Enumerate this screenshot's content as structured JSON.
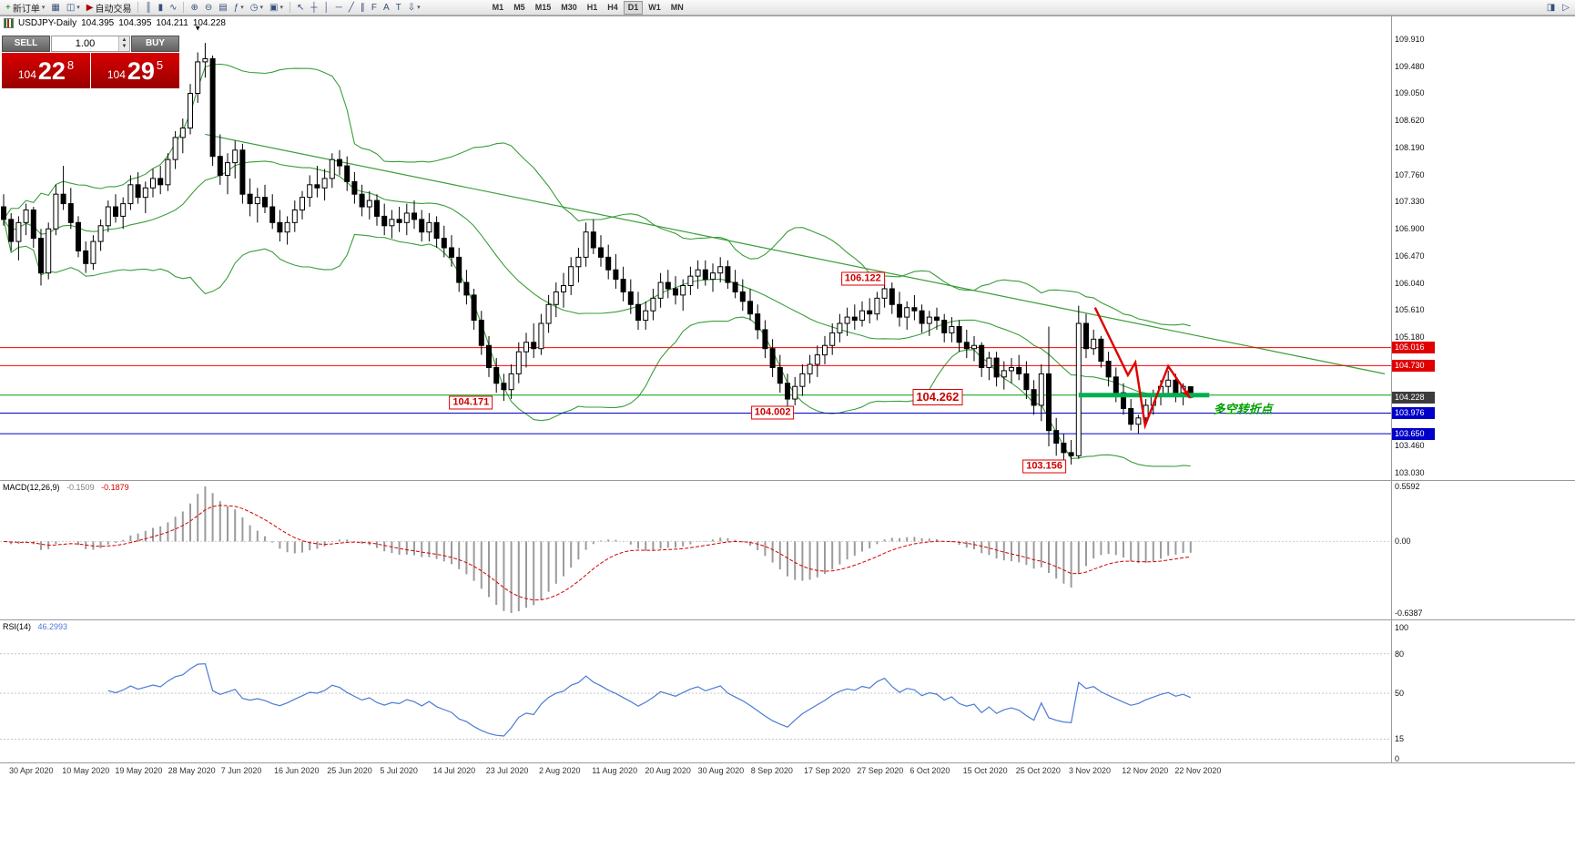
{
  "toolbar": {
    "items": [
      {
        "name": "new-order-button",
        "glyph": "+",
        "glyph_color": "#008000",
        "label": "新订单",
        "dropdown": true
      },
      {
        "name": "charts-icon",
        "glyph": "▦"
      },
      {
        "name": "profiles-icon",
        "glyph": "◫",
        "dropdown": true
      },
      {
        "name": "auto-trading-button",
        "glyph": "▶",
        "glyph_color": "#b00000",
        "label": "自动交易"
      },
      {
        "sep": true
      },
      {
        "name": "bars-chart-icon",
        "glyph": "║"
      },
      {
        "name": "candlestick-chart-icon",
        "glyph": "▮"
      },
      {
        "name": "line-chart-icon",
        "glyph": "∿"
      },
      {
        "sep": true
      },
      {
        "name": "zoom-in-icon",
        "glyph": "⊕"
      },
      {
        "name": "zoom-out-icon",
        "glyph": "⊖"
      },
      {
        "name": "tile-windows-icon",
        "glyph": "▤"
      },
      {
        "name": "indicators-icon",
        "glyph": "ƒ",
        "dropdown": true
      },
      {
        "name": "periods-icon",
        "glyph": "◷",
        "dropdown": true
      },
      {
        "name": "templates-icon",
        "glyph": "▣",
        "dropdown": true
      },
      {
        "sep": true
      },
      {
        "name": "cursor-icon",
        "glyph": "↖"
      },
      {
        "name": "crosshair-icon",
        "glyph": "┼"
      },
      {
        "name": "vertical-line-icon",
        "glyph": "│"
      },
      {
        "name": "horizontal-line-icon",
        "glyph": "─"
      },
      {
        "name": "trendline-icon",
        "glyph": "╱"
      },
      {
        "name": "channel-icon",
        "glyph": "∥"
      },
      {
        "name": "fibonacci-icon",
        "glyph": "F"
      },
      {
        "name": "text-icon",
        "glyph": "A"
      },
      {
        "name": "label-icon",
        "glyph": "T"
      },
      {
        "name": "arrows-icon",
        "glyph": "⇩",
        "dropdown": true
      }
    ],
    "timeframes": [
      "M1",
      "M5",
      "M15",
      "M30",
      "H1",
      "H4",
      "D1",
      "W1",
      "MN"
    ],
    "active_timeframe": "D1",
    "right_icons": [
      {
        "name": "chart-shift-icon",
        "glyph": "◨"
      },
      {
        "name": "auto-scroll-icon",
        "glyph": "▷"
      }
    ]
  },
  "chart": {
    "title": "USDJPY-Daily",
    "ohlc": {
      "open": "104.395",
      "high": "104.395",
      "low": "104.211",
      "close": "104.228"
    },
    "one_click": {
      "sell_label": "SELL",
      "buy_label": "BUY",
      "volume": "1.00",
      "sell_price_small": "104",
      "sell_price_big": "22",
      "sell_price_sup": "8",
      "buy_price_small": "104",
      "buy_price_big": "29",
      "buy_price_sup": "5"
    },
    "price_axis": {
      "ticks": [
        "109.910",
        "109.480",
        "109.050",
        "108.620",
        "108.190",
        "107.760",
        "107.330",
        "106.900",
        "106.470",
        "106.040",
        "105.610",
        "105.180",
        "103.460",
        "103.030"
      ],
      "line_labels": [
        {
          "text": "105.016",
          "price": 105.016,
          "color": "#e00000"
        },
        {
          "text": "104.730",
          "price": 104.73,
          "color": "#e00000"
        },
        {
          "text": "104.228",
          "price": 104.228,
          "color": "#3c3c3c"
        },
        {
          "text": "103.976",
          "price": 103.976,
          "color": "#0000c8"
        },
        {
          "text": "103.650",
          "price": 103.65,
          "color": "#0000c8"
        }
      ]
    },
    "callouts": [
      {
        "text": "106.122",
        "index": 115.1,
        "price": 106.11
      },
      {
        "text": "104.171",
        "index": 62.6,
        "price": 104.143
      },
      {
        "text": "104.262",
        "index": 125.1,
        "price": 104.23,
        "big": true
      },
      {
        "text": "104.002",
        "index": 103.0,
        "price": 103.984
      },
      {
        "text": "103.156",
        "index": 139.4,
        "price": 103.13
      }
    ],
    "annotations": [
      {
        "type": "text",
        "text": "多空转折点",
        "index": 166,
        "price": 104.06,
        "color": "#00a000"
      },
      {
        "type": "down-marker",
        "glyph": "▼",
        "index": 26,
        "price": 110.08
      }
    ],
    "dates": [
      "30 Apr 2020",
      "10 May 2020",
      "19 May 2020",
      "28 May 2020",
      "7 Jun 2020",
      "16 Jun 2020",
      "25 Jun 2020",
      "5 Jul 2020",
      "14 Jul 2020",
      "23 Jul 2020",
      "2 Aug 2020",
      "11 Aug 2020",
      "20 Aug 2020",
      "30 Aug 2020",
      "8 Sep 2020",
      "17 Sep 2020",
      "27 Sep 2020",
      "6 Oct 2020",
      "15 Oct 2020",
      "25 Oct 2020",
      "3 Nov 2020",
      "12 Nov 2020",
      "22 Nov 2020"
    ]
  },
  "macd": {
    "label": "MACD(12,26,9)",
    "main_value": "-0.1509",
    "signal_value": "-0.1879",
    "axis": [
      "0.5592",
      "0.00",
      "-0.6387"
    ],
    "histogram_color": "#9b9b9b",
    "signal_color": "#d40000"
  },
  "rsi": {
    "label": "RSI(14)",
    "value": "46.2993",
    "color": "#4b7bd4",
    "axis": [
      {
        "text": "100",
        "value": 100
      },
      {
        "text": "80",
        "value": 80
      },
      {
        "text": "50",
        "value": 50
      },
      {
        "text": "15",
        "value": 15
      },
      {
        "text": "0",
        "value": 0
      }
    ],
    "levels_dotted": [
      80,
      50,
      15
    ]
  },
  "chart_data": {
    "type": "candlestick",
    "symbol": "USDJPY",
    "timeframe": "Daily",
    "price_range_visible": [
      103.03,
      109.91
    ],
    "candles": [
      [
        107.25,
        107.45,
        106.95,
        107.05
      ],
      [
        107.05,
        107.15,
        106.55,
        106.7
      ],
      [
        106.7,
        107.1,
        106.4,
        107.0
      ],
      [
        107.0,
        107.3,
        106.8,
        107.2
      ],
      [
        107.2,
        107.25,
        106.6,
        106.75
      ],
      [
        106.75,
        106.9,
        106.0,
        106.2
      ],
      [
        106.2,
        107.0,
        106.1,
        106.9
      ],
      [
        106.9,
        107.6,
        106.8,
        107.45
      ],
      [
        107.45,
        107.9,
        107.2,
        107.3
      ],
      [
        107.3,
        107.55,
        106.9,
        107.0
      ],
      [
        107.0,
        107.1,
        106.45,
        106.55
      ],
      [
        106.55,
        106.7,
        106.2,
        106.35
      ],
      [
        106.35,
        106.8,
        106.25,
        106.7
      ],
      [
        106.7,
        107.05,
        106.55,
        106.95
      ],
      [
        106.95,
        107.35,
        106.85,
        107.25
      ],
      [
        107.25,
        107.45,
        107.0,
        107.1
      ],
      [
        107.1,
        107.4,
        106.9,
        107.3
      ],
      [
        107.3,
        107.75,
        107.2,
        107.6
      ],
      [
        107.6,
        107.8,
        107.3,
        107.4
      ],
      [
        107.4,
        107.65,
        107.15,
        107.55
      ],
      [
        107.55,
        107.85,
        107.4,
        107.7
      ],
      [
        107.7,
        107.9,
        107.45,
        107.6
      ],
      [
        107.6,
        108.1,
        107.5,
        108.0
      ],
      [
        108.0,
        108.45,
        107.85,
        108.35
      ],
      [
        108.35,
        108.65,
        108.1,
        108.5
      ],
      [
        108.5,
        109.2,
        108.4,
        109.05
      ],
      [
        109.05,
        109.7,
        108.9,
        109.55
      ],
      [
        109.55,
        109.85,
        109.3,
        109.6
      ],
      [
        109.6,
        109.65,
        107.9,
        108.05
      ],
      [
        108.05,
        108.4,
        107.6,
        107.75
      ],
      [
        107.75,
        108.1,
        107.45,
        107.95
      ],
      [
        107.95,
        108.3,
        107.7,
        108.15
      ],
      [
        108.15,
        108.25,
        107.3,
        107.45
      ],
      [
        107.45,
        107.7,
        107.1,
        107.3
      ],
      [
        107.3,
        107.55,
        107.0,
        107.4
      ],
      [
        107.4,
        107.6,
        107.15,
        107.25
      ],
      [
        107.25,
        107.45,
        106.9,
        107.0
      ],
      [
        107.0,
        107.2,
        106.7,
        106.85
      ],
      [
        106.85,
        107.1,
        106.65,
        107.0
      ],
      [
        107.0,
        107.35,
        106.85,
        107.2
      ],
      [
        107.2,
        107.5,
        107.05,
        107.4
      ],
      [
        107.4,
        107.75,
        107.25,
        107.6
      ],
      [
        107.6,
        107.9,
        107.4,
        107.55
      ],
      [
        107.55,
        107.85,
        107.35,
        107.7
      ],
      [
        107.7,
        108.1,
        107.55,
        108.0
      ],
      [
        108.0,
        108.15,
        107.75,
        107.9
      ],
      [
        107.9,
        108.05,
        107.5,
        107.65
      ],
      [
        107.65,
        107.8,
        107.3,
        107.45
      ],
      [
        107.45,
        107.6,
        107.1,
        107.25
      ],
      [
        107.25,
        107.5,
        107.05,
        107.35
      ],
      [
        107.35,
        107.45,
        106.95,
        107.1
      ],
      [
        107.1,
        107.3,
        106.8,
        106.95
      ],
      [
        106.95,
        107.2,
        106.75,
        107.05
      ],
      [
        107.05,
        107.25,
        106.85,
        107.0
      ],
      [
        107.0,
        107.3,
        106.8,
        107.15
      ],
      [
        107.15,
        107.35,
        106.9,
        107.05
      ],
      [
        107.05,
        107.2,
        106.7,
        106.85
      ],
      [
        106.85,
        107.15,
        106.7,
        107.0
      ],
      [
        107.0,
        107.1,
        106.6,
        106.75
      ],
      [
        106.75,
        106.95,
        106.45,
        106.6
      ],
      [
        106.6,
        106.8,
        106.3,
        106.45
      ],
      [
        106.45,
        106.6,
        105.9,
        106.05
      ],
      [
        106.05,
        106.25,
        105.7,
        105.85
      ],
      [
        105.85,
        105.95,
        105.3,
        105.45
      ],
      [
        105.45,
        105.6,
        104.9,
        105.05
      ],
      [
        105.05,
        105.2,
        104.55,
        104.7
      ],
      [
        104.7,
        104.85,
        104.3,
        104.45
      ],
      [
        104.45,
        104.6,
        104.17,
        104.35
      ],
      [
        104.35,
        104.75,
        104.2,
        104.6
      ],
      [
        104.6,
        105.1,
        104.45,
        104.95
      ],
      [
        104.95,
        105.25,
        104.7,
        105.1
      ],
      [
        105.1,
        105.4,
        104.85,
        105.0
      ],
      [
        105.0,
        105.55,
        104.9,
        105.4
      ],
      [
        105.4,
        105.85,
        105.25,
        105.7
      ],
      [
        105.7,
        106.05,
        105.5,
        105.9
      ],
      [
        105.9,
        106.2,
        105.65,
        106.0
      ],
      [
        106.0,
        106.45,
        105.85,
        106.3
      ],
      [
        106.3,
        106.6,
        106.05,
        106.45
      ],
      [
        106.45,
        107.0,
        106.3,
        106.85
      ],
      [
        106.85,
        107.05,
        106.5,
        106.6
      ],
      [
        106.6,
        106.8,
        106.3,
        106.45
      ],
      [
        106.45,
        106.65,
        106.1,
        106.25
      ],
      [
        106.25,
        106.5,
        105.95,
        106.1
      ],
      [
        106.1,
        106.3,
        105.75,
        105.9
      ],
      [
        105.9,
        106.1,
        105.55,
        105.7
      ],
      [
        105.7,
        105.9,
        105.3,
        105.45
      ],
      [
        105.45,
        105.75,
        105.3,
        105.6
      ],
      [
        105.6,
        105.95,
        105.45,
        105.8
      ],
      [
        105.8,
        106.2,
        105.65,
        106.05
      ],
      [
        106.05,
        106.25,
        105.8,
        105.95
      ],
      [
        105.95,
        106.15,
        105.7,
        105.85
      ],
      [
        105.85,
        106.1,
        105.6,
        106.0
      ],
      [
        106.0,
        106.3,
        105.85,
        106.15
      ],
      [
        106.15,
        106.4,
        105.95,
        106.25
      ],
      [
        106.25,
        106.4,
        106.0,
        106.1
      ],
      [
        106.1,
        106.35,
        105.9,
        106.2
      ],
      [
        106.2,
        106.45,
        106.05,
        106.3
      ],
      [
        106.3,
        106.4,
        105.95,
        106.05
      ],
      [
        106.05,
        106.25,
        105.8,
        105.9
      ],
      [
        105.9,
        106.1,
        105.6,
        105.75
      ],
      [
        105.75,
        105.95,
        105.45,
        105.55
      ],
      [
        105.55,
        105.7,
        105.15,
        105.3
      ],
      [
        105.3,
        105.45,
        104.85,
        105.0
      ],
      [
        105.0,
        105.15,
        104.55,
        104.7
      ],
      [
        104.7,
        104.9,
        104.3,
        104.45
      ],
      [
        104.45,
        104.6,
        104.0,
        104.2
      ],
      [
        104.2,
        104.55,
        104.1,
        104.4
      ],
      [
        104.4,
        104.75,
        104.25,
        104.6
      ],
      [
        104.6,
        104.9,
        104.45,
        104.75
      ],
      [
        104.75,
        105.05,
        104.55,
        104.9
      ],
      [
        104.9,
        105.2,
        104.75,
        105.05
      ],
      [
        105.05,
        105.4,
        104.9,
        105.25
      ],
      [
        105.25,
        105.55,
        105.1,
        105.4
      ],
      [
        105.4,
        105.65,
        105.2,
        105.5
      ],
      [
        105.5,
        105.7,
        105.3,
        105.45
      ],
      [
        105.45,
        105.75,
        105.35,
        105.6
      ],
      [
        105.6,
        105.8,
        105.4,
        105.55
      ],
      [
        105.55,
        105.9,
        105.45,
        105.8
      ],
      [
        105.8,
        106.12,
        105.65,
        105.95
      ],
      [
        105.95,
        106.05,
        105.55,
        105.7
      ],
      [
        105.7,
        105.9,
        105.35,
        105.5
      ],
      [
        105.5,
        105.75,
        105.3,
        105.65
      ],
      [
        105.65,
        105.85,
        105.45,
        105.6
      ],
      [
        105.6,
        105.7,
        105.25,
        105.4
      ],
      [
        105.4,
        105.6,
        105.2,
        105.5
      ],
      [
        105.5,
        105.65,
        105.3,
        105.45
      ],
      [
        105.45,
        105.55,
        105.1,
        105.25
      ],
      [
        105.25,
        105.5,
        105.1,
        105.35
      ],
      [
        105.35,
        105.45,
        104.95,
        105.1
      ],
      [
        105.1,
        105.3,
        104.85,
        105.0
      ],
      [
        105.0,
        105.2,
        104.8,
        105.05
      ],
      [
        105.05,
        105.1,
        104.55,
        104.7
      ],
      [
        104.7,
        104.95,
        104.5,
        104.85
      ],
      [
        104.85,
        104.95,
        104.4,
        104.55
      ],
      [
        104.55,
        104.8,
        104.35,
        104.65
      ],
      [
        104.65,
        104.85,
        104.45,
        104.7
      ],
      [
        104.7,
        104.9,
        104.5,
        104.6
      ],
      [
        104.6,
        104.8,
        104.2,
        104.35
      ],
      [
        104.35,
        104.5,
        103.95,
        104.1
      ],
      [
        104.1,
        104.75,
        103.85,
        104.6
      ],
      [
        104.6,
        105.35,
        103.45,
        103.7
      ],
      [
        103.7,
        103.9,
        103.3,
        103.5
      ],
      [
        103.5,
        103.65,
        103.18,
        103.35
      ],
      [
        103.35,
        103.55,
        103.16,
        103.3
      ],
      [
        103.3,
        105.68,
        103.25,
        105.4
      ],
      [
        105.4,
        105.55,
        104.85,
        105.0
      ],
      [
        105.0,
        105.3,
        104.9,
        105.15
      ],
      [
        105.15,
        105.2,
        104.7,
        104.8
      ],
      [
        104.8,
        104.95,
        104.4,
        104.55
      ],
      [
        104.55,
        104.7,
        104.15,
        104.3
      ],
      [
        104.3,
        104.45,
        103.95,
        104.05
      ],
      [
        104.05,
        104.2,
        103.7,
        103.8
      ],
      [
        103.8,
        103.95,
        103.65,
        103.9
      ],
      [
        103.9,
        104.2,
        103.8,
        104.1
      ],
      [
        104.1,
        104.35,
        103.95,
        104.25
      ],
      [
        104.25,
        104.5,
        104.1,
        104.4
      ],
      [
        104.4,
        104.65,
        104.25,
        104.5
      ],
      [
        104.5,
        104.6,
        104.15,
        104.3
      ],
      [
        104.3,
        104.45,
        104.1,
        104.4
      ],
      [
        104.395,
        104.395,
        104.211,
        104.228
      ]
    ],
    "overlays": {
      "bollinger": {
        "period": 20,
        "deviation": 2,
        "color": "#3a9e3a"
      },
      "trendline": {
        "from_index": 27,
        "from_price": 108.4,
        "to_index": 185,
        "to_price": 104.6,
        "color": "#3a9e3a"
      },
      "support_zone": {
        "price": 104.262,
        "from_index": 144,
        "to_index": 161.5,
        "color": "#00b050",
        "width": 5
      },
      "arrow": {
        "color": "#e00000",
        "points": [
          [
            146.2,
            105.65
          ],
          [
            150.6,
            104.58
          ],
          [
            151.6,
            104.78
          ],
          [
            152.9,
            103.78
          ],
          [
            156.0,
            104.72
          ],
          [
            158.9,
            104.22
          ]
        ]
      }
    },
    "hlines": [
      {
        "name": "resistance-line-105016",
        "price": 105.016,
        "color": "#ff0000",
        "width": 1
      },
      {
        "name": "resistance-line-104730",
        "price": 104.73,
        "color": "#ff0000",
        "width": 1
      },
      {
        "name": "pivot-line-104262",
        "price": 104.262,
        "color": "#00a000",
        "width": 1
      },
      {
        "name": "support-line-103976",
        "price": 103.976,
        "color": "#0000cd",
        "width": 1
      },
      {
        "name": "support-line-103650",
        "price": 103.65,
        "color": "#0000cd",
        "width": 1
      }
    ]
  }
}
